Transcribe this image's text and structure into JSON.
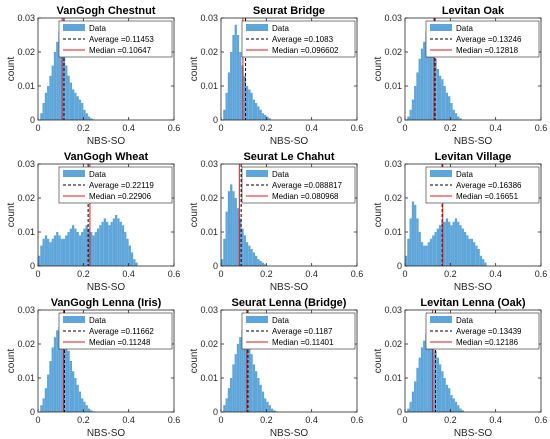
{
  "chart_data": [
    {
      "type": "bar",
      "title": "VanGogh Chestnut",
      "xlabel": "NBS-SO",
      "ylabel": "count",
      "xlim": [
        0,
        0.6
      ],
      "ylim": [
        0,
        0.03
      ],
      "xticks": [
        "0",
        "0.2",
        "0.4",
        "0.6"
      ],
      "yticks": [
        "0",
        "0.01",
        "0.02",
        "0.03"
      ],
      "legend": {
        "data": "Data",
        "average": "Average =0.11453",
        "median": "Median =0.10647"
      },
      "average": 0.11453,
      "median": 0.10647,
      "hist": {
        "x0": 0,
        "bin_width": 0.01,
        "values": [
          0,
          0.002,
          0.005,
          0.008,
          0.01,
          0.013,
          0.016,
          0.02,
          0.023,
          0.026,
          0.024,
          0.02,
          0.016,
          0.013,
          0.011,
          0.009,
          0.008,
          0.007,
          0.006,
          0.005,
          0.003,
          0.002,
          0.001,
          0.0005,
          0.0002
        ]
      }
    },
    {
      "type": "bar",
      "title": "Seurat Bridge",
      "xlabel": "NBS-SO",
      "ylabel": "count",
      "xlim": [
        0,
        0.6
      ],
      "ylim": [
        0,
        0.03
      ],
      "xticks": [
        "0",
        "0.2",
        "0.4",
        "0.6"
      ],
      "yticks": [
        "0",
        "0.01",
        "0.02",
        "0.03"
      ],
      "legend": {
        "data": "Data",
        "average": "Average =0.1083",
        "median": "Median =0.096602"
      },
      "average": 0.1083,
      "median": 0.096602,
      "hist": {
        "x0": 0,
        "bin_width": 0.01,
        "values": [
          0,
          0.003,
          0.008,
          0.014,
          0.02,
          0.025,
          0.028,
          0.025,
          0.02,
          0.016,
          0.013,
          0.01,
          0.009,
          0.008,
          0.006,
          0.005,
          0.004,
          0.003,
          0.002,
          0.0015,
          0.001,
          0.0005
        ]
      }
    },
    {
      "type": "bar",
      "title": "Levitan Oak",
      "xlabel": "NBS-SO",
      "ylabel": "count",
      "xlim": [
        0,
        0.6
      ],
      "ylim": [
        0,
        0.03
      ],
      "xticks": [
        "0",
        "0.2",
        "0.4",
        "0.6"
      ],
      "yticks": [
        "0",
        "0.01",
        "0.02",
        "0.03"
      ],
      "legend": {
        "data": "Data",
        "average": "Average =0.13246",
        "median": "Median =0.12818"
      },
      "average": 0.13246,
      "median": 0.12818,
      "hist": {
        "x0": 0,
        "bin_width": 0.01,
        "values": [
          0,
          0.001,
          0.003,
          0.006,
          0.01,
          0.014,
          0.018,
          0.021,
          0.023,
          0.026,
          0.024,
          0.022,
          0.02,
          0.018,
          0.015,
          0.013,
          0.012,
          0.01,
          0.008,
          0.007,
          0.005,
          0.003,
          0.002,
          0.001,
          0.0005
        ]
      }
    },
    {
      "type": "bar",
      "title": "VanGogh Wheat",
      "xlabel": "NBS-SO",
      "ylabel": "count",
      "xlim": [
        0,
        0.6
      ],
      "ylim": [
        0,
        0.03
      ],
      "xticks": [
        "0",
        "0.2",
        "0.4",
        "0.6"
      ],
      "yticks": [
        "0",
        "0.01",
        "0.02",
        "0.03"
      ],
      "legend": {
        "data": "Data",
        "average": "Average =0.22119",
        "median": "Median =0.22906"
      },
      "average": 0.22119,
      "median": 0.22906,
      "hist": {
        "x0": 0,
        "bin_width": 0.01,
        "values": [
          0.003,
          0.006,
          0.008,
          0.009,
          0.008,
          0.007,
          0.008,
          0.009,
          0.01,
          0.009,
          0.008,
          0.008,
          0.009,
          0.01,
          0.011,
          0.012,
          0.011,
          0.01,
          0.009,
          0.01,
          0.011,
          0.012,
          0.011,
          0.01,
          0.009,
          0.01,
          0.011,
          0.012,
          0.013,
          0.014,
          0.013,
          0.012,
          0.013,
          0.014,
          0.015,
          0.014,
          0.013,
          0.012,
          0.01,
          0.008,
          0.006,
          0.004,
          0.002,
          0.001
        ]
      }
    },
    {
      "type": "bar",
      "title": "Seurat Le Chahut",
      "xlabel": "NBS-SO",
      "ylabel": "count",
      "xlim": [
        0,
        0.6
      ],
      "ylim": [
        0,
        0.03
      ],
      "xticks": [
        "0",
        "0.2",
        "0.4",
        "0.6"
      ],
      "yticks": [
        "0",
        "0.01",
        "0.02",
        "0.03"
      ],
      "legend": {
        "data": "Data",
        "average": "Average =0.088817",
        "median": "Median =0.080968"
      },
      "average": 0.088817,
      "median": 0.080968,
      "hist": {
        "x0": 0,
        "bin_width": 0.01,
        "values": [
          0.002,
          0.008,
          0.016,
          0.022,
          0.024,
          0.022,
          0.02,
          0.017,
          0.014,
          0.011,
          0.009,
          0.007,
          0.006,
          0.005,
          0.004,
          0.003,
          0.002,
          0.0015,
          0.001,
          0.0005
        ]
      }
    },
    {
      "type": "bar",
      "title": "Levitan Village",
      "xlabel": "NBS-SO",
      "ylabel": "count",
      "xlim": [
        0,
        0.6
      ],
      "ylim": [
        0,
        0.03
      ],
      "xticks": [
        "0",
        "0.2",
        "0.4",
        "0.6"
      ],
      "yticks": [
        "0",
        "0.01",
        "0.02",
        "0.03"
      ],
      "legend": {
        "data": "Data",
        "average": "Average =0.16386",
        "median": "Median =0.16651"
      },
      "average": 0.16386,
      "median": 0.16651,
      "hist": {
        "x0": 0,
        "bin_width": 0.01,
        "values": [
          0.003,
          0.008,
          0.014,
          0.019,
          0.018,
          0.014,
          0.01,
          0.007,
          0.006,
          0.006,
          0.007,
          0.008,
          0.009,
          0.01,
          0.011,
          0.012,
          0.013,
          0.013,
          0.014,
          0.013,
          0.012,
          0.013,
          0.014,
          0.013,
          0.012,
          0.011,
          0.01,
          0.009,
          0.008,
          0.008,
          0.007,
          0.006,
          0.005,
          0.003,
          0.002,
          0.001
        ]
      }
    },
    {
      "type": "bar",
      "title": "VanGogh Lenna (Iris)",
      "xlabel": "NBS-SO",
      "ylabel": "count",
      "xlim": [
        0,
        0.6
      ],
      "ylim": [
        0,
        0.03
      ],
      "xticks": [
        "0",
        "0.2",
        "0.4",
        "0.6"
      ],
      "yticks": [
        "0",
        "0.01",
        "0.02",
        "0.03"
      ],
      "legend": {
        "data": "Data",
        "average": "Average =0.11662",
        "median": "Median =0.11248"
      },
      "average": 0.11662,
      "median": 0.11248,
      "hist": {
        "x0": 0,
        "bin_width": 0.01,
        "values": [
          0,
          0.002,
          0.004,
          0.007,
          0.011,
          0.015,
          0.019,
          0.022,
          0.024,
          0.025,
          0.026,
          0.024,
          0.021,
          0.018,
          0.015,
          0.012,
          0.01,
          0.008,
          0.006,
          0.004,
          0.003,
          0.002,
          0.001,
          0.0005,
          0.0002
        ]
      }
    },
    {
      "type": "bar",
      "title": "Seurat Lenna (Bridge)",
      "xlabel": "NBS-SO",
      "ylabel": "count",
      "xlim": [
        0,
        0.6
      ],
      "ylim": [
        0,
        0.03
      ],
      "xticks": [
        "0",
        "0.2",
        "0.4",
        "0.6"
      ],
      "yticks": [
        "0",
        "0.01",
        "0.02",
        "0.03"
      ],
      "legend": {
        "data": "Data",
        "average": "Average =0.1187",
        "median": "Median =0.11401"
      },
      "average": 0.1187,
      "median": 0.11401,
      "hist": {
        "x0": 0,
        "bin_width": 0.01,
        "values": [
          0,
          0.002,
          0.004,
          0.007,
          0.01,
          0.014,
          0.017,
          0.02,
          0.022,
          0.024,
          0.025,
          0.023,
          0.02,
          0.017,
          0.014,
          0.012,
          0.01,
          0.008,
          0.006,
          0.004,
          0.003,
          0.002,
          0.001,
          0.0005,
          0.0002
        ]
      }
    },
    {
      "type": "bar",
      "title": "Levitan Lenna (Oak)",
      "xlabel": "NBS-SO",
      "ylabel": "count",
      "xlim": [
        0,
        0.6
      ],
      "ylim": [
        0,
        0.03
      ],
      "xticks": [
        "0",
        "0.2",
        "0.4",
        "0.6"
      ],
      "yticks": [
        "0",
        "0.01",
        "0.02",
        "0.03"
      ],
      "legend": {
        "data": "Data",
        "average": "Average =0.13439",
        "median": "Median =0.12186"
      },
      "average": 0.13439,
      "median": 0.12186,
      "hist": {
        "x0": 0,
        "bin_width": 0.01,
        "values": [
          0,
          0.001,
          0.003,
          0.006,
          0.009,
          0.013,
          0.016,
          0.019,
          0.021,
          0.023,
          0.024,
          0.022,
          0.02,
          0.018,
          0.016,
          0.014,
          0.012,
          0.01,
          0.008,
          0.007,
          0.005,
          0.004,
          0.003,
          0.002,
          0.001,
          0.0005
        ]
      }
    }
  ],
  "colors": {
    "bar": "#5ea5d9",
    "average": "#000000",
    "median": "#e0191e",
    "axis": "#262626"
  }
}
